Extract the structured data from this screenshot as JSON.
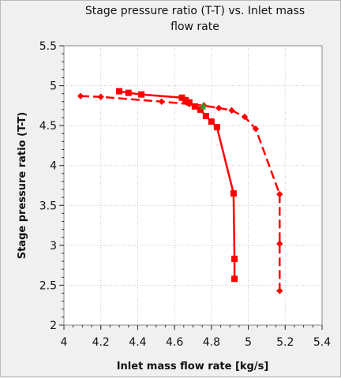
{
  "chart_data": {
    "type": "line",
    "title_lines": [
      "Stage pressure ratio (T-T) vs. Inlet mass",
      "flow rate"
    ],
    "xlabel": "Inlet mass flow rate [kg/s]",
    "ylabel": "Stage pressure ratio (T-T)",
    "xlim": [
      4,
      5.4
    ],
    "ylim": [
      2,
      5.5
    ],
    "xticks": [
      4,
      4.2,
      4.4,
      4.6,
      4.8,
      5,
      5.2,
      5.4
    ],
    "yticks": [
      2,
      2.5,
      3,
      3.5,
      4,
      4.5,
      5,
      5.5
    ],
    "xtick_labels": [
      "4",
      "4.2",
      "4.4",
      "4.6",
      "4.8",
      "5",
      "5.2",
      "5.4"
    ],
    "ytick_labels": [
      "2",
      "2.5",
      "3",
      "3.5",
      "4",
      "4.5",
      "5",
      "5.5"
    ],
    "grid": true,
    "series": [
      {
        "marker": "square",
        "line_style": "solid",
        "color": "#ff0000",
        "x": [
          4.3,
          4.35,
          4.42,
          4.64,
          4.66,
          4.68,
          4.71,
          4.74,
          4.77,
          4.8,
          4.83,
          4.92,
          4.925,
          4.925
        ],
        "y": [
          4.93,
          4.91,
          4.89,
          4.85,
          4.82,
          4.79,
          4.74,
          4.7,
          4.62,
          4.55,
          4.48,
          3.65,
          2.83,
          2.58
        ]
      },
      {
        "marker": "diamond",
        "line_style": "dashed",
        "color": "#ff0000",
        "x": [
          4.09,
          4.2,
          4.53,
          4.68,
          4.76,
          4.84,
          4.91,
          4.98,
          5.04,
          5.17,
          5.17,
          5.17
        ],
        "y": [
          4.87,
          4.86,
          4.8,
          4.77,
          4.75,
          4.72,
          4.69,
          4.61,
          4.46,
          3.64,
          3.02,
          2.43
        ]
      }
    ],
    "highlight_point": {
      "x": 4.755,
      "y": 4.74,
      "color": "#2e9e2e"
    }
  }
}
